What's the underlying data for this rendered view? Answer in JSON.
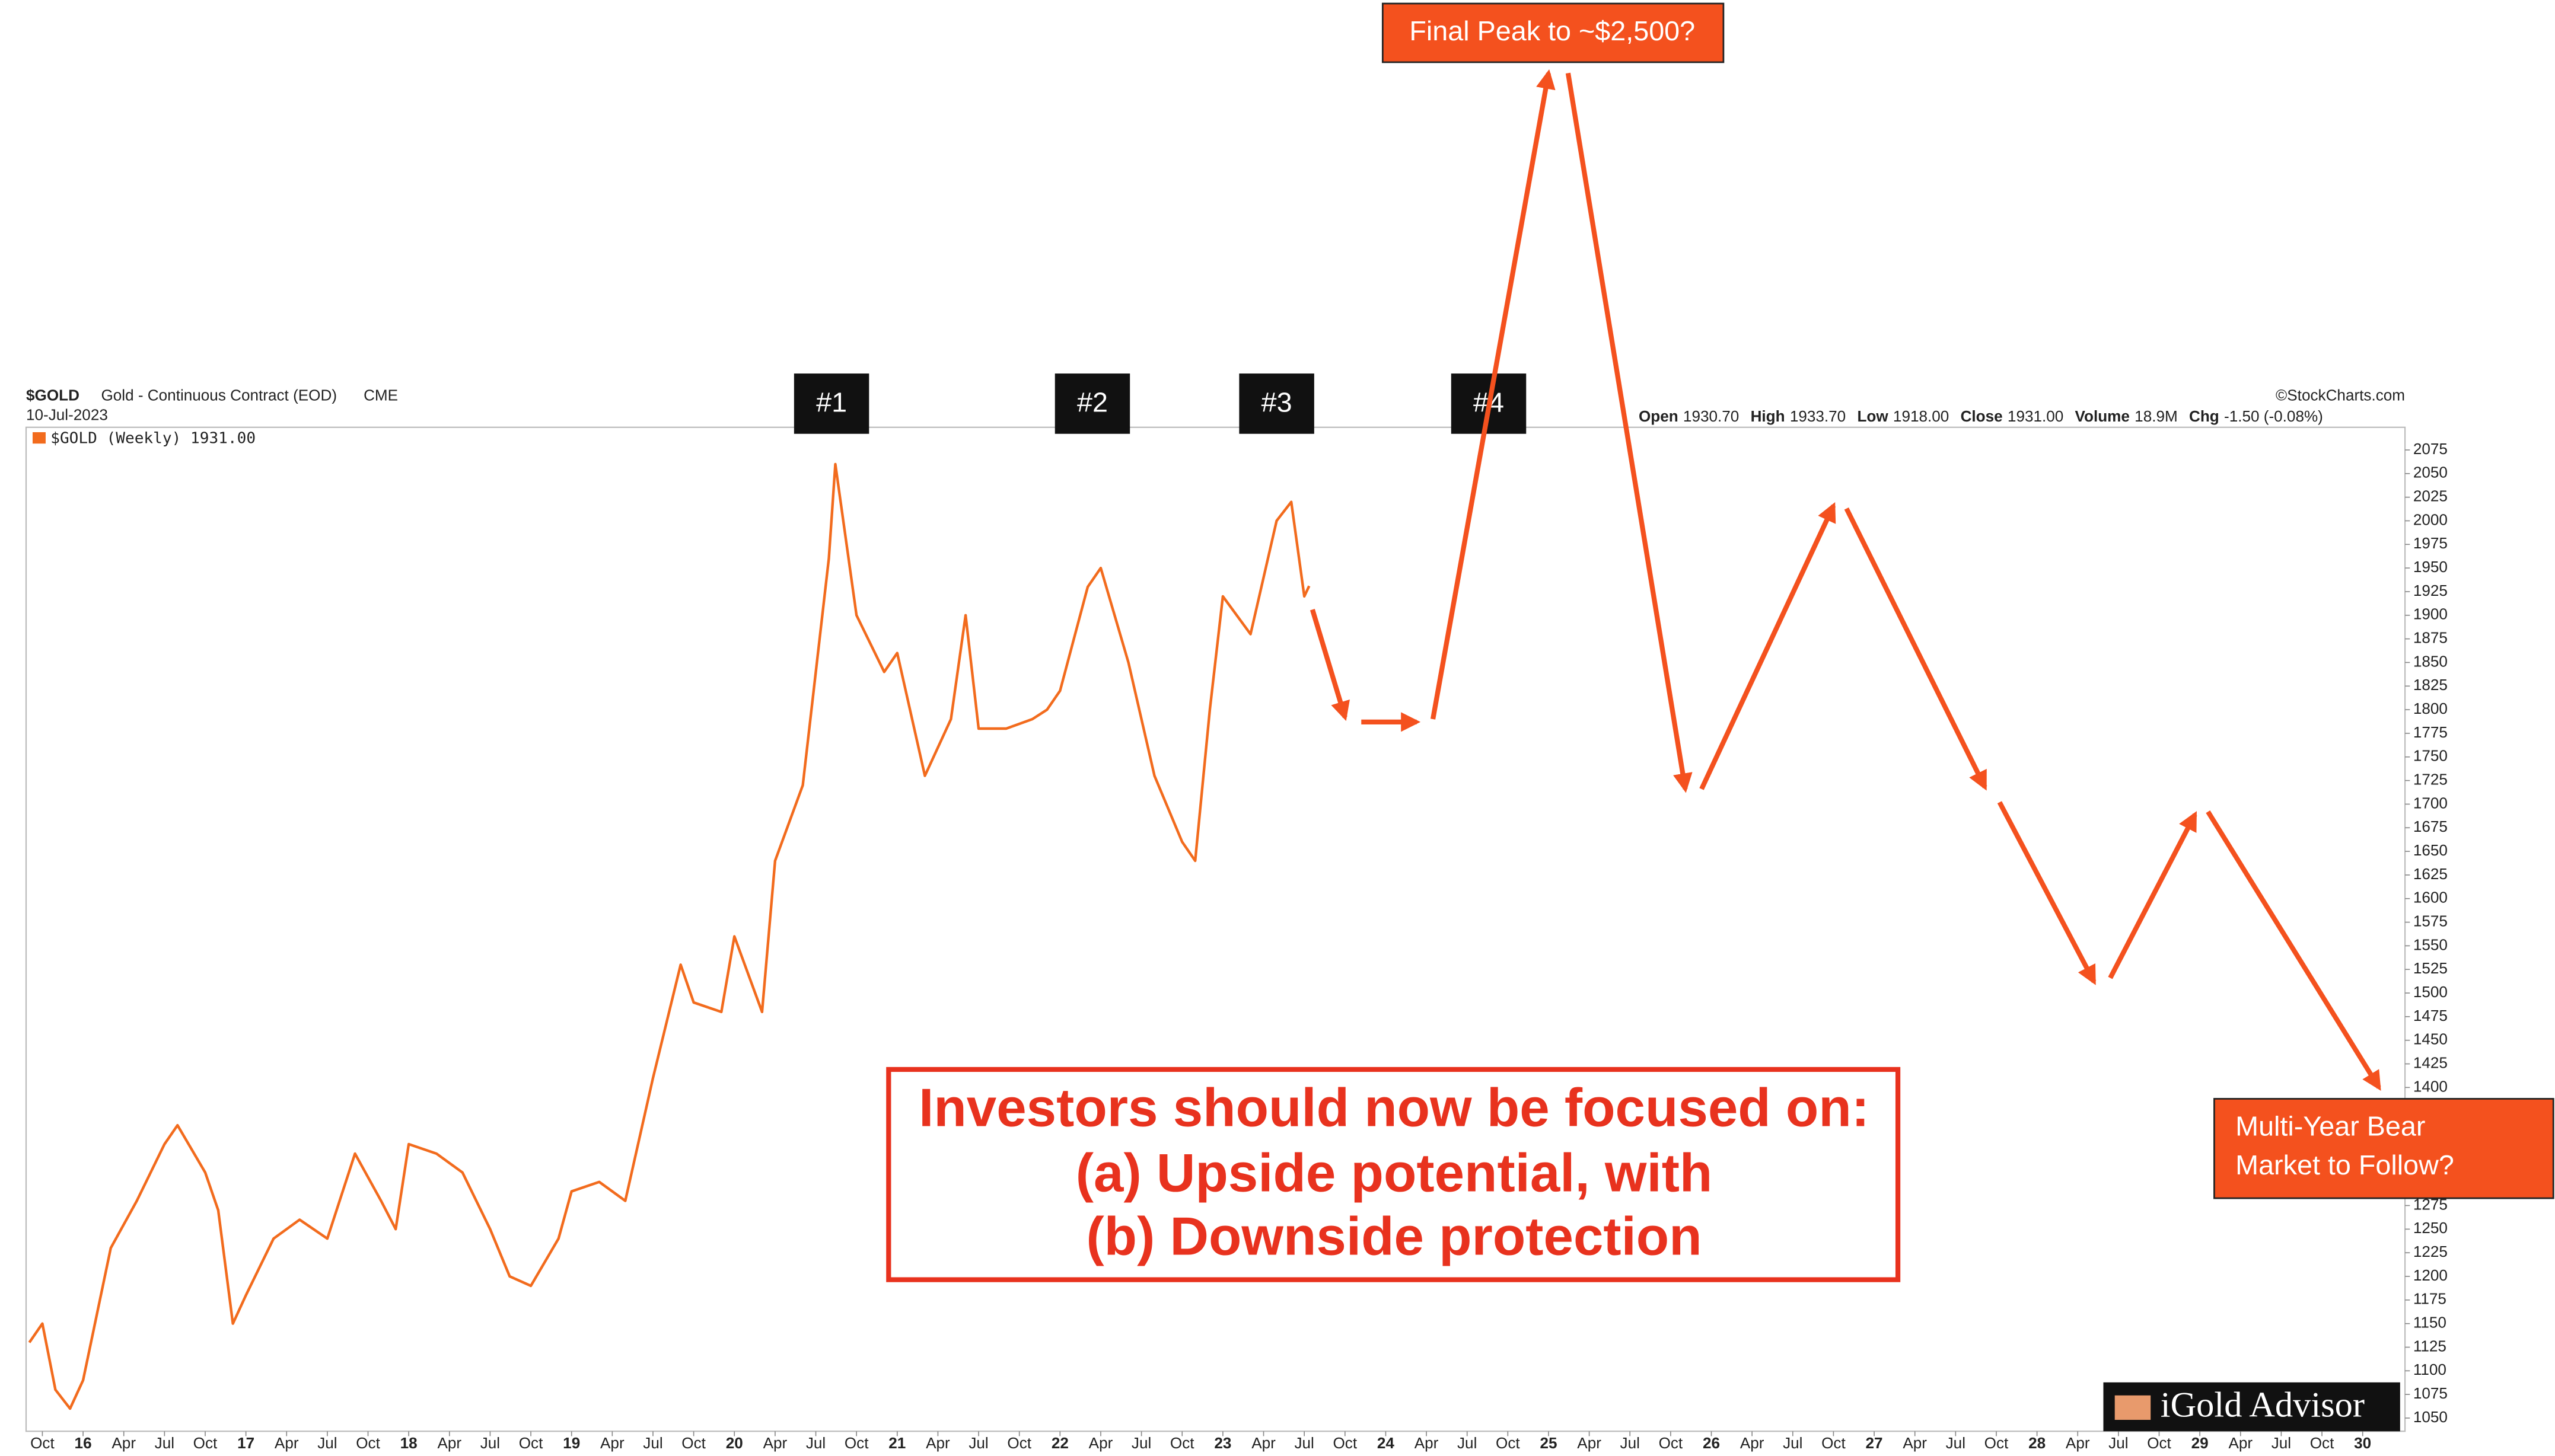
{
  "chart_data": {
    "type": "line",
    "symbol": "$GOLD",
    "subtitle": "Gold - Continuous Contract (EOD)",
    "exchange": "CME",
    "date": "10-Jul-2023",
    "credit": "©StockCharts.com",
    "quote": [
      {
        "label": "Open",
        "value": "1930.70"
      },
      {
        "label": "High",
        "value": "1933.70"
      },
      {
        "label": "Low",
        "value": "1918.00"
      },
      {
        "label": "Close",
        "value": "1931.00"
      },
      {
        "label": "Volume",
        "value": "18.9M"
      },
      {
        "label": "Chg",
        "value": "-1.50 (-0.08%)"
      }
    ],
    "x": [
      2015.67,
      2015.75,
      2015.83,
      2015.92,
      2016.0,
      2016.17,
      2016.33,
      2016.5,
      2016.58,
      2016.75,
      2016.83,
      2016.92,
      2017.0,
      2017.17,
      2017.33,
      2017.5,
      2017.67,
      2017.83,
      2017.92,
      2018.0,
      2018.17,
      2018.33,
      2018.5,
      2018.62,
      2018.75,
      2018.92,
      2019.0,
      2019.17,
      2019.33,
      2019.5,
      2019.67,
      2019.75,
      2019.92,
      2020.0,
      2020.17,
      2020.25,
      2020.42,
      2020.58,
      2020.62,
      2020.75,
      2020.92,
      2021.0,
      2021.17,
      2021.33,
      2021.42,
      2021.5,
      2021.67,
      2021.83,
      2021.92,
      2022.0,
      2022.17,
      2022.25,
      2022.42,
      2022.58,
      2022.75,
      2022.83,
      2022.92,
      2023.0,
      2023.17,
      2023.33,
      2023.42,
      2023.5,
      2023.53
    ],
    "series": [
      {
        "name": "$GOLD (Weekly) 1931.00",
        "color": "#f26b1d",
        "values": [
          1130,
          1150,
          1080,
          1060,
          1090,
          1230,
          1280,
          1340,
          1360,
          1310,
          1270,
          1150,
          1180,
          1240,
          1260,
          1240,
          1330,
          1280,
          1250,
          1340,
          1330,
          1310,
          1250,
          1200,
          1190,
          1240,
          1290,
          1300,
          1280,
          1410,
          1530,
          1490,
          1480,
          1560,
          1480,
          1640,
          1720,
          1960,
          2060,
          1900,
          1840,
          1860,
          1730,
          1790,
          1900,
          1780,
          1780,
          1790,
          1800,
          1820,
          1930,
          1950,
          1850,
          1730,
          1660,
          1640,
          1800,
          1920,
          1880,
          2000,
          2020,
          1920,
          1931
        ]
      }
    ],
    "projection": {
      "color": "#f4511e",
      "segments": [
        {
          "x": [
            2023.55,
            2023.75
          ],
          "values": [
            1906,
            1792
          ]
        },
        {
          "x": [
            2023.85,
            2024.19
          ],
          "values": [
            1787,
            1787
          ]
        },
        {
          "x": [
            2024.29,
            2025.0
          ],
          "values": [
            1790,
            2474
          ]
        },
        {
          "x": [
            2025.12,
            2025.84
          ],
          "values": [
            2474,
            1716
          ]
        },
        {
          "x": [
            2025.94,
            2026.75
          ],
          "values": [
            1716,
            2016
          ]
        },
        {
          "x": [
            2026.83,
            2027.68
          ],
          "values": [
            2013,
            1718
          ]
        },
        {
          "x": [
            2027.77,
            2028.35
          ],
          "values": [
            1702,
            1512
          ]
        },
        {
          "x": [
            2028.45,
            2028.97
          ],
          "values": [
            1516,
            1689
          ]
        },
        {
          "x": [
            2029.05,
            2030.1
          ],
          "values": [
            1692,
            1400
          ]
        }
      ]
    },
    "labels": [
      "#1",
      "#2",
      "#3",
      "#4"
    ],
    "peak_note": "Final Peak to ~$2,500?",
    "bear_note": [
      "Multi-Year Bear",
      "Market to Follow?"
    ],
    "message": [
      "Investors should now be focused on:",
      "(a) Upside potential, with",
      "(b) Downside protection"
    ],
    "brand": "iGold Advisor",
    "xlim": [
      2015.65,
      2030.26
    ],
    "ylim": [
      1036,
      2099
    ],
    "yticks": [
      2075,
      2050,
      2025,
      2000,
      1975,
      1950,
      1925,
      1900,
      1875,
      1850,
      1825,
      1800,
      1775,
      1750,
      1725,
      1700,
      1675,
      1650,
      1625,
      1600,
      1575,
      1550,
      1525,
      1500,
      1475,
      1450,
      1425,
      1400,
      1275,
      1250,
      1225,
      1200,
      1175,
      1150,
      1125,
      1100,
      1075,
      1050
    ],
    "xticks": [
      {
        "value": 2015.75,
        "label": "Oct"
      },
      {
        "value": 2016,
        "label": "16"
      },
      {
        "value": 2016.25,
        "label": "Apr"
      },
      {
        "value": 2016.5,
        "label": "Jul"
      },
      {
        "value": 2016.75,
        "label": "Oct"
      },
      {
        "value": 2017,
        "label": "17"
      },
      {
        "value": 2017.25,
        "label": "Apr"
      },
      {
        "value": 2017.5,
        "label": "Jul"
      },
      {
        "value": 2017.75,
        "label": "Oct"
      },
      {
        "value": 2018,
        "label": "18"
      },
      {
        "value": 2018.25,
        "label": "Apr"
      },
      {
        "value": 2018.5,
        "label": "Jul"
      },
      {
        "value": 2018.75,
        "label": "Oct"
      },
      {
        "value": 2019,
        "label": "19"
      },
      {
        "value": 2019.25,
        "label": "Apr"
      },
      {
        "value": 2019.5,
        "label": "Jul"
      },
      {
        "value": 2019.75,
        "label": "Oct"
      },
      {
        "value": 2020,
        "label": "20"
      },
      {
        "value": 2020.25,
        "label": "Apr"
      },
      {
        "value": 2020.5,
        "label": "Jul"
      },
      {
        "value": 2020.75,
        "label": "Oct"
      },
      {
        "value": 2021,
        "label": "21"
      },
      {
        "value": 2021.25,
        "label": "Apr"
      },
      {
        "value": 2021.5,
        "label": "Jul"
      },
      {
        "value": 2021.75,
        "label": "Oct"
      },
      {
        "value": 2022,
        "label": "22"
      },
      {
        "value": 2022.25,
        "label": "Apr"
      },
      {
        "value": 2022.5,
        "label": "Jul"
      },
      {
        "value": 2022.75,
        "label": "Oct"
      },
      {
        "value": 2023,
        "label": "23"
      },
      {
        "value": 2023.25,
        "label": "Apr"
      },
      {
        "value": 2023.5,
        "label": "Jul"
      },
      {
        "value": 2023.75,
        "label": "Oct"
      },
      {
        "value": 2024,
        "label": "24"
      },
      {
        "value": 2024.25,
        "label": "Apr"
      },
      {
        "value": 2024.5,
        "label": "Jul"
      },
      {
        "value": 2024.75,
        "label": "Oct"
      },
      {
        "value": 2025,
        "label": "25"
      },
      {
        "value": 2025.25,
        "label": "Apr"
      },
      {
        "value": 2025.5,
        "label": "Jul"
      },
      {
        "value": 2025.75,
        "label": "Oct"
      },
      {
        "value": 2026,
        "label": "26"
      },
      {
        "value": 2026.25,
        "label": "Apr"
      },
      {
        "value": 2026.5,
        "label": "Jul"
      },
      {
        "value": 2026.75,
        "label": "Oct"
      },
      {
        "value": 2027,
        "label": "27"
      },
      {
        "value": 2027.25,
        "label": "Apr"
      },
      {
        "value": 2027.5,
        "label": "Jul"
      },
      {
        "value": 2027.75,
        "label": "Oct"
      },
      {
        "value": 2028,
        "label": "28"
      },
      {
        "value": 2028.25,
        "label": "Apr"
      },
      {
        "value": 2028.5,
        "label": "Jul"
      },
      {
        "value": 2028.75,
        "label": "Oct"
      },
      {
        "value": 2029,
        "label": "29"
      },
      {
        "value": 2029.25,
        "label": "Apr"
      },
      {
        "value": 2029.5,
        "label": "Jul"
      },
      {
        "value": 2029.75,
        "label": "Oct"
      },
      {
        "value": 2030,
        "label": "30"
      }
    ],
    "grid": false
  }
}
